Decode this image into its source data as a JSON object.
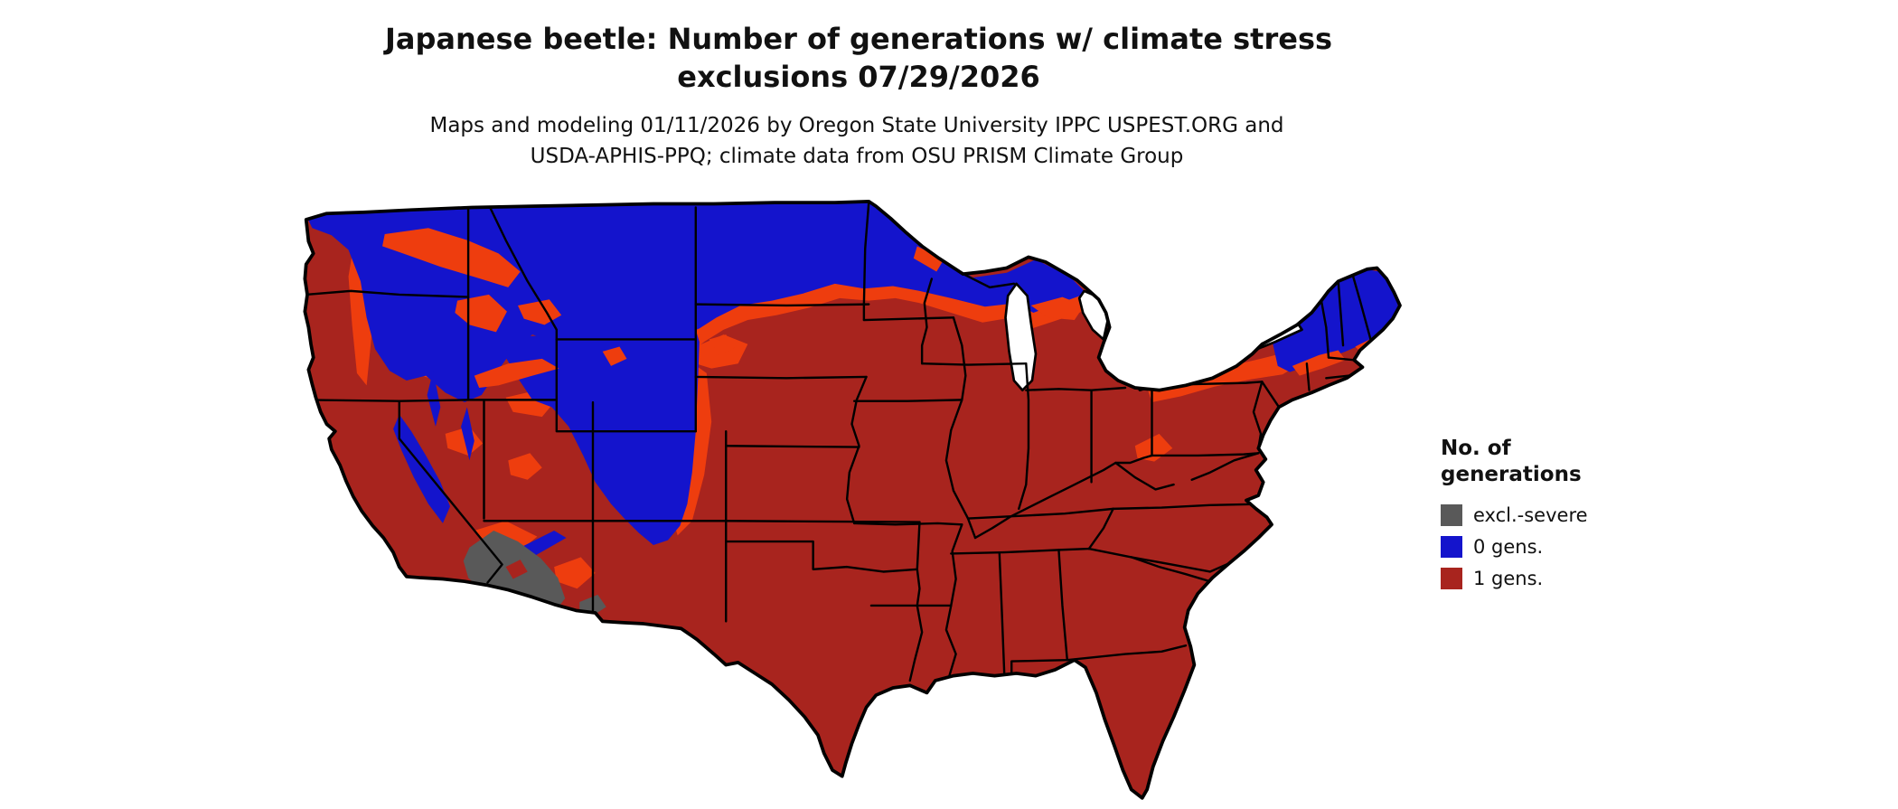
{
  "figure": {
    "title_line1": "Japanese beetle: Number of generations w/ climate stress",
    "title_line2": "exclusions 07/29/2026",
    "subtitle_line1": "Maps and modeling 01/11/2026 by Oregon State University IPPC USPEST.ORG and",
    "subtitle_line2": "USDA-APHIS-PPQ; climate data from OSU PRISM Climate Group"
  },
  "legend": {
    "title_line1": "No. of",
    "title_line2": "generations",
    "items": [
      {
        "label": "excl.-severe",
        "color": "#595959"
      },
      {
        "label": "0 gens.",
        "color": "#1414CC"
      },
      {
        "label": "1 gens.",
        "color": "#A8241E"
      }
    ]
  },
  "map": {
    "region": "Contiguous United States",
    "colors": {
      "one_generation": "#A8241E",
      "zero_generations": "#1414CC",
      "transition": "#EE3D0E",
      "severe_exclusion": "#595959",
      "border": "#000000",
      "water": "#FFFFFF"
    },
    "map_zones": {
      "zero_generations": "Pacific Northwest interior, northern Rockies (Idaho, Montana, Wyoming, high Utah/Colorado), North Dakota, northern Minnesota/Wisconsin/Michigan, Adirondacks and northern New England",
      "one_generation": "Most of California, the Southwest, Great Plains, Midwest, South and East",
      "transition": "Orange fringe between the 0-generation and 1-generation zones across South Dakota, Minnesota, Wisconsin, Michigan, Pennsylvania/New York highlands and western mountain margins",
      "severe_exclusion": "Sonoran Desert of southwestern Arizona"
    }
  }
}
